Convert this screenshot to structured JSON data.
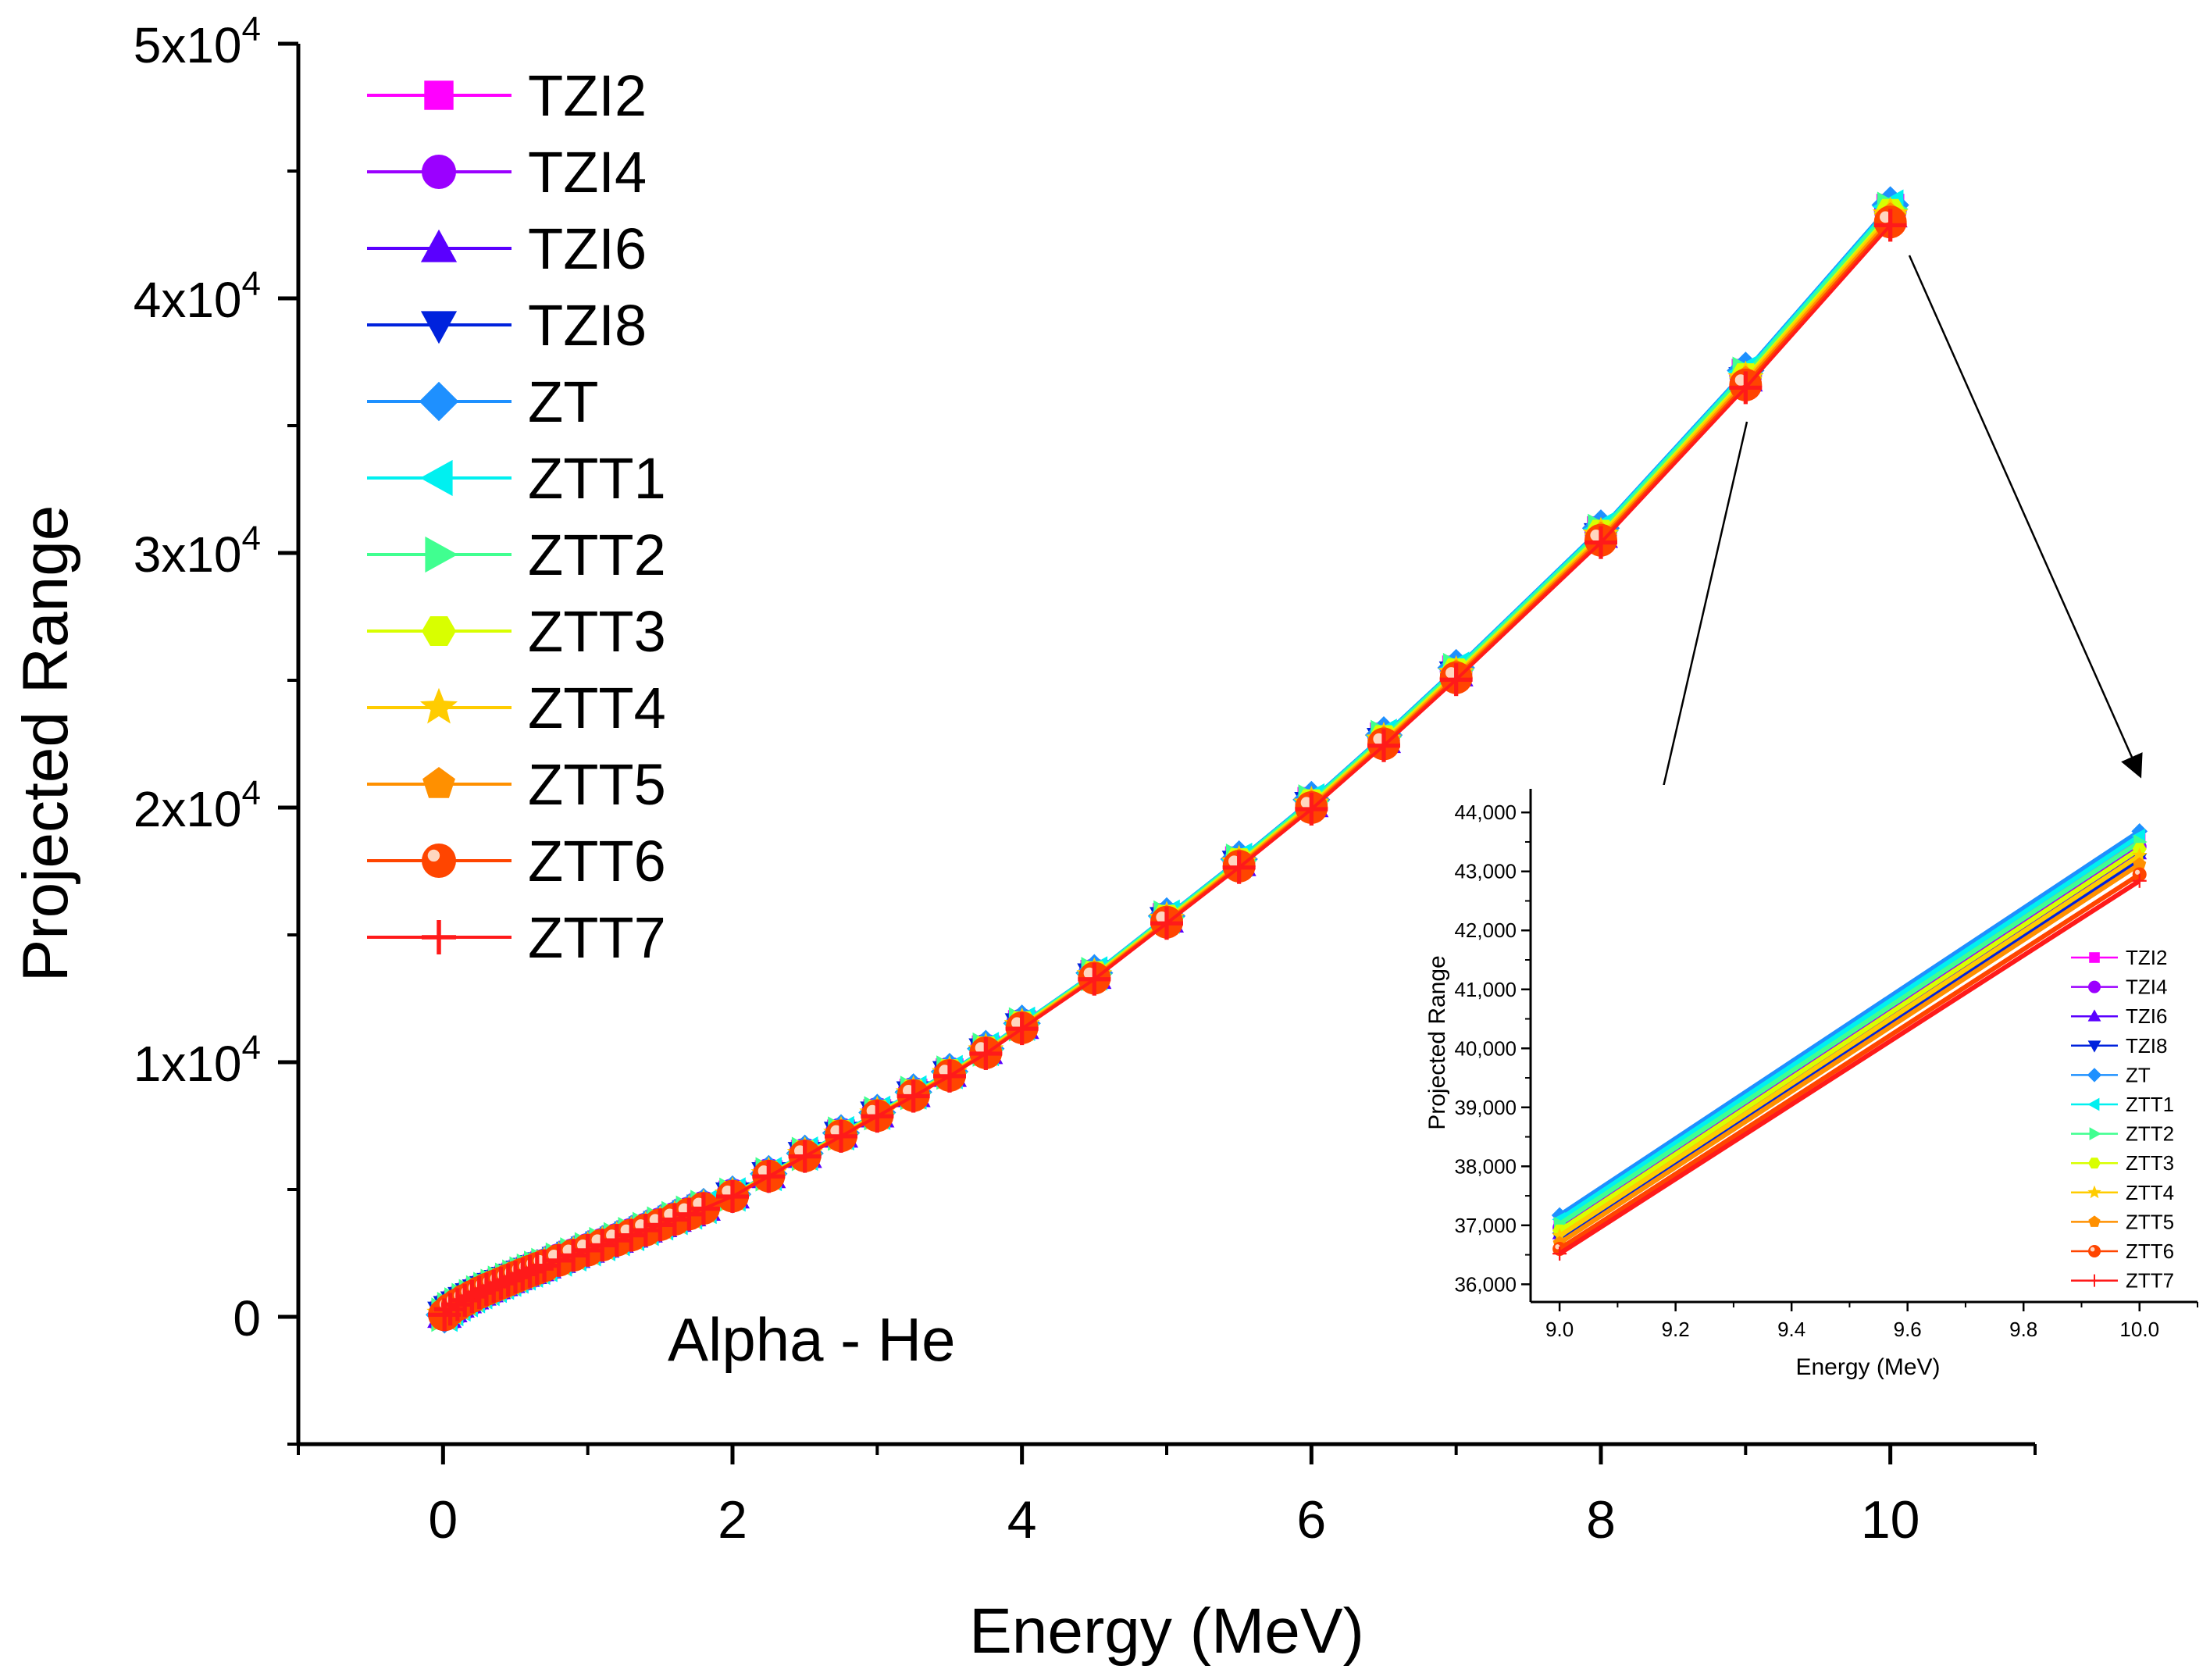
{
  "chart_data": [
    {
      "type": "line",
      "title": "",
      "xlabel": "Energy (MeV)",
      "ylabel": "Projected Range",
      "annotation": "Alpha - He",
      "xlim": [
        -1,
        11
      ],
      "ylim": [
        -5000,
        50000
      ],
      "xticks": [
        {
          "value": 0,
          "label": "0"
        },
        {
          "value": 2,
          "label": "2"
        },
        {
          "value": 4,
          "label": "4"
        },
        {
          "value": 6,
          "label": "6"
        },
        {
          "value": 8,
          "label": "8"
        },
        {
          "value": 10,
          "label": "10"
        }
      ],
      "yticks": [
        {
          "value": 0,
          "base": "0",
          "exp": ""
        },
        {
          "value": 10000,
          "base": "1x10",
          "exp": "4"
        },
        {
          "value": 20000,
          "base": "2x10",
          "exp": "4"
        },
        {
          "value": 30000,
          "base": "3x10",
          "exp": "4"
        },
        {
          "value": 40000,
          "base": "4x10",
          "exp": "4"
        },
        {
          "value": 50000,
          "base": "5x10",
          "exp": "4"
        }
      ],
      "legend_position": "top-left",
      "x": [
        0.01,
        0.05,
        0.1,
        0.15,
        0.2,
        0.25,
        0.3,
        0.35,
        0.4,
        0.45,
        0.5,
        0.55,
        0.6,
        0.65,
        0.7,
        0.8,
        0.9,
        1.0,
        1.1,
        1.2,
        1.3,
        1.4,
        1.5,
        1.6,
        1.7,
        1.8,
        2.0,
        2.25,
        2.5,
        2.75,
        3.0,
        3.25,
        3.5,
        3.75,
        4.0,
        4.5,
        5.0,
        5.5,
        6.0,
        6.5,
        7.0,
        8.0,
        9.0,
        10.0
      ],
      "reference_values": [
        80,
        300,
        480,
        650,
        800,
        950,
        1080,
        1200,
        1320,
        1440,
        1560,
        1680,
        1790,
        1900,
        2010,
        2220,
        2420,
        2620,
        2820,
        3010,
        3210,
        3410,
        3620,
        3830,
        4040,
        4260,
        4740,
        5530,
        6320,
        7110,
        7900,
        8690,
        9480,
        10370,
        11350,
        13300,
        15500,
        17700,
        20000,
        22500,
        25100,
        30500,
        36600,
        43000
      ],
      "series": [
        {
          "name": "TZI2",
          "color": "#ff00ff",
          "marker": "square",
          "factor": 1.013
        },
        {
          "name": "TZI4",
          "color": "#9b00ff",
          "marker": "circle",
          "factor": 1.01
        },
        {
          "name": "TZI6",
          "color": "#5a00ff",
          "marker": "triangle-up",
          "factor": 1.007
        },
        {
          "name": "TZI8",
          "color": "#0022dd",
          "marker": "triangle-down",
          "factor": 1.005
        },
        {
          "name": "ZT",
          "color": "#1e90ff",
          "marker": "diamond",
          "factor": 1.0155
        },
        {
          "name": "ZTT1",
          "color": "#00f0f0",
          "marker": "triangle-left",
          "factor": 1.014
        },
        {
          "name": "ZTT2",
          "color": "#40ff90",
          "marker": "triangle-right",
          "factor": 1.012
        },
        {
          "name": "ZTT3",
          "color": "#d8ff00",
          "marker": "hexagon",
          "factor": 1.008
        },
        {
          "name": "ZTT4",
          "color": "#ffcc00",
          "marker": "star",
          "factor": 1.006
        },
        {
          "name": "ZTT5",
          "color": "#ff9000",
          "marker": "pentagon",
          "factor": 1.003
        },
        {
          "name": "ZTT6",
          "color": "#ff4500",
          "marker": "ball",
          "factor": 1.0
        },
        {
          "name": "ZTT7",
          "color": "#ff1a1a",
          "marker": "plus",
          "factor": 0.997
        }
      ]
    },
    {
      "type": "line",
      "title": "",
      "xlabel": "Energy (MeV)",
      "ylabel": "Projected Range",
      "xlim": [
        8.95,
        10.1
      ],
      "ylim": [
        35700,
        44400
      ],
      "xticks": [
        {
          "value": 9.0,
          "label": "9.0"
        },
        {
          "value": 9.2,
          "label": "9.2"
        },
        {
          "value": 9.4,
          "label": "9.4"
        },
        {
          "value": 9.6,
          "label": "9.6"
        },
        {
          "value": 9.8,
          "label": "9.8"
        },
        {
          "value": 10.0,
          "label": "10.0"
        }
      ],
      "yticks": [
        {
          "value": 36000,
          "label": "36,000"
        },
        {
          "value": 37000,
          "label": "37,000"
        },
        {
          "value": 38000,
          "label": "38,000"
        },
        {
          "value": 39000,
          "label": "39,000"
        },
        {
          "value": 40000,
          "label": "40,000"
        },
        {
          "value": 41000,
          "label": "41,000"
        },
        {
          "value": 42000,
          "label": "42,000"
        },
        {
          "value": 43000,
          "label": "43,000"
        },
        {
          "value": 44000,
          "label": "44,000"
        }
      ],
      "legend_position": "right",
      "x": [
        9.0,
        10.0
      ],
      "series": [
        {
          "name": "TZI2",
          "color": "#ff00ff",
          "marker": "square",
          "values": [
            37050,
            43530
          ]
        },
        {
          "name": "TZI4",
          "color": "#9b00ff",
          "marker": "circle",
          "values": [
            36960,
            43420
          ]
        },
        {
          "name": "TZI6",
          "color": "#5a00ff",
          "marker": "triangle-up",
          "values": [
            36860,
            43300
          ]
        },
        {
          "name": "TZI8",
          "color": "#0022dd",
          "marker": "triangle-down",
          "values": [
            36780,
            43210
          ]
        },
        {
          "name": "ZT",
          "color": "#1e90ff",
          "marker": "diamond",
          "values": [
            37170,
            43680
          ]
        },
        {
          "name": "ZTT1",
          "color": "#00f0f0",
          "marker": "triangle-left",
          "values": [
            37100,
            43600
          ]
        },
        {
          "name": "ZTT2",
          "color": "#40ff90",
          "marker": "triangle-right",
          "values": [
            37020,
            43500
          ]
        },
        {
          "name": "ZTT3",
          "color": "#d8ff00",
          "marker": "hexagon",
          "values": [
            36910,
            43380
          ]
        },
        {
          "name": "ZTT4",
          "color": "#ffcc00",
          "marker": "star",
          "values": [
            36820,
            43270
          ]
        },
        {
          "name": "ZTT5",
          "color": "#ff9000",
          "marker": "pentagon",
          "values": [
            36700,
            43120
          ]
        },
        {
          "name": "ZTT6",
          "color": "#ff4500",
          "marker": "ball",
          "values": [
            36600,
            42950
          ]
        },
        {
          "name": "ZTT7",
          "color": "#ff1a1a",
          "marker": "plus",
          "values": [
            36520,
            42840
          ]
        }
      ]
    }
  ]
}
